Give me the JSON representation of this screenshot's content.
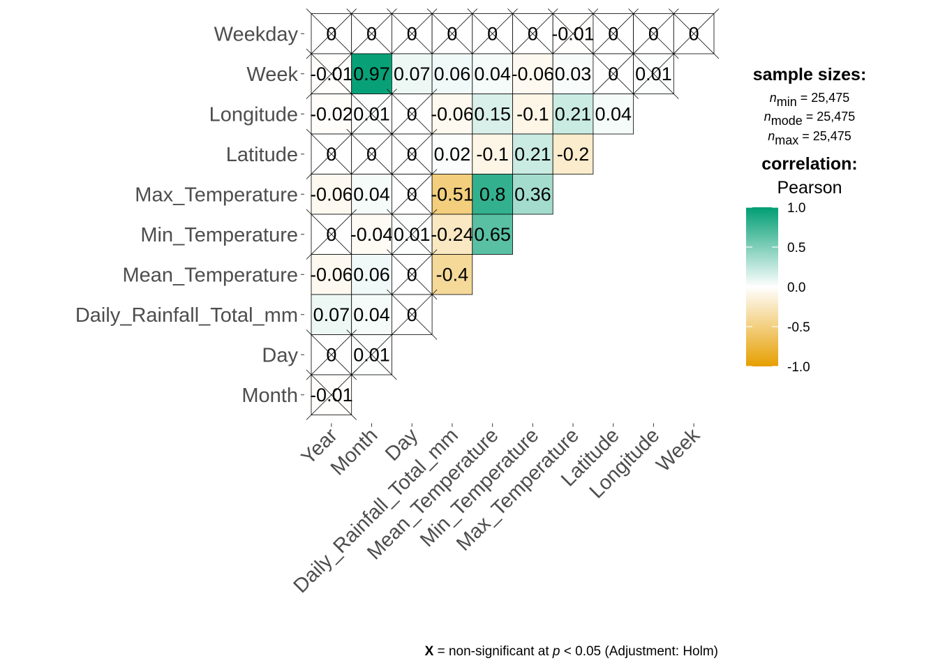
{
  "chart_data": {
    "type": "heatmap",
    "variables": [
      "Year",
      "Month",
      "Day",
      "Daily_Rainfall_Total_mm",
      "Mean_Temperature",
      "Min_Temperature",
      "Max_Temperature",
      "Latitude",
      "Longitude",
      "Week",
      "Weekday"
    ],
    "x_categories": [
      "Year",
      "Month",
      "Day",
      "Daily_Rainfall_Total_mm",
      "Mean_Temperature",
      "Min_Temperature",
      "Max_Temperature",
      "Latitude",
      "Longitude",
      "Week"
    ],
    "y_categories": [
      "Weekday",
      "Week",
      "Longitude",
      "Latitude",
      "Max_Temperature",
      "Min_Temperature",
      "Mean_Temperature",
      "Daily_Rainfall_Total_mm",
      "Day",
      "Month"
    ],
    "cells": [
      {
        "row": "Weekday",
        "col": "Year",
        "value": 0,
        "label": "0",
        "nonsignificant": true
      },
      {
        "row": "Weekday",
        "col": "Month",
        "value": 0,
        "label": "0",
        "nonsignificant": true
      },
      {
        "row": "Weekday",
        "col": "Day",
        "value": 0,
        "label": "0",
        "nonsignificant": true
      },
      {
        "row": "Weekday",
        "col": "Daily_Rainfall_Total_mm",
        "value": 0,
        "label": "0",
        "nonsignificant": true
      },
      {
        "row": "Weekday",
        "col": "Mean_Temperature",
        "value": 0,
        "label": "0",
        "nonsignificant": true
      },
      {
        "row": "Weekday",
        "col": "Min_Temperature",
        "value": 0,
        "label": "0",
        "nonsignificant": true
      },
      {
        "row": "Weekday",
        "col": "Max_Temperature",
        "value": -0.01,
        "label": "-0.01",
        "nonsignificant": true
      },
      {
        "row": "Weekday",
        "col": "Latitude",
        "value": 0,
        "label": "0",
        "nonsignificant": true
      },
      {
        "row": "Weekday",
        "col": "Longitude",
        "value": 0,
        "label": "0",
        "nonsignificant": true
      },
      {
        "row": "Weekday",
        "col": "Week",
        "value": 0,
        "label": "0",
        "nonsignificant": true
      },
      {
        "row": "Week",
        "col": "Year",
        "value": -0.01,
        "label": "-0.01",
        "nonsignificant": true
      },
      {
        "row": "Week",
        "col": "Month",
        "value": 0.97,
        "label": "0.97",
        "nonsignificant": false
      },
      {
        "row": "Week",
        "col": "Day",
        "value": 0.07,
        "label": "0.07",
        "nonsignificant": false
      },
      {
        "row": "Week",
        "col": "Daily_Rainfall_Total_mm",
        "value": 0.06,
        "label": "0.06",
        "nonsignificant": false
      },
      {
        "row": "Week",
        "col": "Mean_Temperature",
        "value": 0.04,
        "label": "0.04",
        "nonsignificant": false
      },
      {
        "row": "Week",
        "col": "Min_Temperature",
        "value": -0.06,
        "label": "-0.06",
        "nonsignificant": false
      },
      {
        "row": "Week",
        "col": "Max_Temperature",
        "value": 0.03,
        "label": "0.03",
        "nonsignificant": false
      },
      {
        "row": "Week",
        "col": "Latitude",
        "value": 0,
        "label": "0",
        "nonsignificant": true
      },
      {
        "row": "Week",
        "col": "Longitude",
        "value": 0.01,
        "label": "0.01",
        "nonsignificant": true
      },
      {
        "row": "Longitude",
        "col": "Year",
        "value": -0.02,
        "label": "-0.02",
        "nonsignificant": false
      },
      {
        "row": "Longitude",
        "col": "Month",
        "value": 0.01,
        "label": "0.01",
        "nonsignificant": true
      },
      {
        "row": "Longitude",
        "col": "Day",
        "value": 0,
        "label": "0",
        "nonsignificant": true
      },
      {
        "row": "Longitude",
        "col": "Daily_Rainfall_Total_mm",
        "value": -0.06,
        "label": "-0.06",
        "nonsignificant": false
      },
      {
        "row": "Longitude",
        "col": "Mean_Temperature",
        "value": 0.15,
        "label": "0.15",
        "nonsignificant": false
      },
      {
        "row": "Longitude",
        "col": "Min_Temperature",
        "value": -0.1,
        "label": "-0.1",
        "nonsignificant": false
      },
      {
        "row": "Longitude",
        "col": "Max_Temperature",
        "value": 0.21,
        "label": "0.21",
        "nonsignificant": false
      },
      {
        "row": "Longitude",
        "col": "Latitude",
        "value": 0.04,
        "label": "0.04",
        "nonsignificant": false
      },
      {
        "row": "Latitude",
        "col": "Year",
        "value": 0,
        "label": "0",
        "nonsignificant": true
      },
      {
        "row": "Latitude",
        "col": "Month",
        "value": 0,
        "label": "0",
        "nonsignificant": true
      },
      {
        "row": "Latitude",
        "col": "Day",
        "value": 0,
        "label": "0",
        "nonsignificant": true
      },
      {
        "row": "Latitude",
        "col": "Daily_Rainfall_Total_mm",
        "value": 0.02,
        "label": "0.02",
        "nonsignificant": false
      },
      {
        "row": "Latitude",
        "col": "Mean_Temperature",
        "value": -0.1,
        "label": "-0.1",
        "nonsignificant": false
      },
      {
        "row": "Latitude",
        "col": "Min_Temperature",
        "value": 0.21,
        "label": "0.21",
        "nonsignificant": false
      },
      {
        "row": "Latitude",
        "col": "Max_Temperature",
        "value": -0.2,
        "label": "-0.2",
        "nonsignificant": false
      },
      {
        "row": "Max_Temperature",
        "col": "Year",
        "value": -0.06,
        "label": "-0.06",
        "nonsignificant": false
      },
      {
        "row": "Max_Temperature",
        "col": "Month",
        "value": 0.04,
        "label": "0.04",
        "nonsignificant": false
      },
      {
        "row": "Max_Temperature",
        "col": "Day",
        "value": 0,
        "label": "0",
        "nonsignificant": true
      },
      {
        "row": "Max_Temperature",
        "col": "Daily_Rainfall_Total_mm",
        "value": -0.51,
        "label": "-0.51",
        "nonsignificant": false
      },
      {
        "row": "Max_Temperature",
        "col": "Mean_Temperature",
        "value": 0.8,
        "label": "0.8",
        "nonsignificant": false
      },
      {
        "row": "Max_Temperature",
        "col": "Min_Temperature",
        "value": 0.36,
        "label": "0.36",
        "nonsignificant": false
      },
      {
        "row": "Min_Temperature",
        "col": "Year",
        "value": 0,
        "label": "0",
        "nonsignificant": true
      },
      {
        "row": "Min_Temperature",
        "col": "Month",
        "value": -0.04,
        "label": "-0.04",
        "nonsignificant": false
      },
      {
        "row": "Min_Temperature",
        "col": "Day",
        "value": 0.01,
        "label": "0.01",
        "nonsignificant": true
      },
      {
        "row": "Min_Temperature",
        "col": "Daily_Rainfall_Total_mm",
        "value": -0.24,
        "label": "-0.24",
        "nonsignificant": false
      },
      {
        "row": "Min_Temperature",
        "col": "Mean_Temperature",
        "value": 0.65,
        "label": "0.65",
        "nonsignificant": false
      },
      {
        "row": "Mean_Temperature",
        "col": "Year",
        "value": -0.06,
        "label": "-0.06",
        "nonsignificant": false
      },
      {
        "row": "Mean_Temperature",
        "col": "Month",
        "value": 0.06,
        "label": "0.06",
        "nonsignificant": false
      },
      {
        "row": "Mean_Temperature",
        "col": "Day",
        "value": 0,
        "label": "0",
        "nonsignificant": true
      },
      {
        "row": "Mean_Temperature",
        "col": "Daily_Rainfall_Total_mm",
        "value": -0.4,
        "label": "-0.4",
        "nonsignificant": false
      },
      {
        "row": "Daily_Rainfall_Total_mm",
        "col": "Year",
        "value": 0.07,
        "label": "0.07",
        "nonsignificant": false
      },
      {
        "row": "Daily_Rainfall_Total_mm",
        "col": "Month",
        "value": 0.04,
        "label": "0.04",
        "nonsignificant": false
      },
      {
        "row": "Daily_Rainfall_Total_mm",
        "col": "Day",
        "value": 0,
        "label": "0",
        "nonsignificant": true
      },
      {
        "row": "Day",
        "col": "Year",
        "value": 0,
        "label": "0",
        "nonsignificant": true
      },
      {
        "row": "Day",
        "col": "Month",
        "value": 0.01,
        "label": "0.01",
        "nonsignificant": true
      },
      {
        "row": "Month",
        "col": "Year",
        "value": -0.01,
        "label": "-0.01",
        "nonsignificant": true
      }
    ],
    "legend": {
      "sample_sizes_title": "sample sizes:",
      "n_lines": [
        {
          "sub": "min",
          "text": " = 25,475"
        },
        {
          "sub": "mode",
          "text": " = 25,475"
        },
        {
          "sub": "max",
          "text": " = 25,475"
        }
      ],
      "n_symbol": "n",
      "correlation_title": "correlation:",
      "method": "Pearson",
      "scale_ticks": [
        {
          "value": 1.0,
          "label": "1.0"
        },
        {
          "value": 0.5,
          "label": "0.5"
        },
        {
          "value": 0.0,
          "label": "0.0"
        },
        {
          "value": -0.5,
          "label": "-0.5"
        },
        {
          "value": -1.0,
          "label": "-1.0"
        }
      ],
      "scale_range": [
        -1,
        1
      ]
    },
    "colors": {
      "low": "#E69F00",
      "mid": "#FFFFFF",
      "high": "#009E73",
      "cell_border": "#000000",
      "label_text": "#4d4d4d"
    },
    "caption": {
      "mark": "X",
      "part1": " = non-significant at ",
      "p": "p",
      "part2": " < 0.05 (Adjustment: Holm)"
    }
  }
}
